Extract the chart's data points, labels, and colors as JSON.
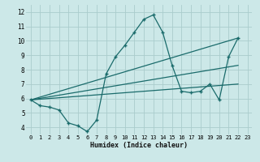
{
  "xlabel": "Humidex (Indice chaleur)",
  "ylabel": "",
  "xlim": [
    -0.5,
    23.5
  ],
  "ylim": [
    3.5,
    12.5
  ],
  "xticks": [
    0,
    1,
    2,
    3,
    4,
    5,
    6,
    7,
    8,
    9,
    10,
    11,
    12,
    13,
    14,
    15,
    16,
    17,
    18,
    19,
    20,
    21,
    22,
    23
  ],
  "yticks": [
    4,
    5,
    6,
    7,
    8,
    9,
    10,
    11,
    12
  ],
  "bg_color": "#cce8e8",
  "grid_color": "#aacccc",
  "line_color": "#1a6b6b",
  "zigzag": {
    "x": [
      0,
      1,
      2,
      3,
      4,
      5,
      6,
      7,
      8,
      9,
      10,
      11,
      12,
      13,
      14,
      15,
      16,
      17,
      18,
      19,
      20,
      21,
      22
    ],
    "y": [
      5.9,
      5.5,
      5.4,
      5.2,
      4.3,
      4.1,
      3.7,
      4.5,
      7.7,
      8.9,
      9.7,
      10.6,
      11.5,
      11.8,
      10.6,
      8.3,
      6.5,
      6.4,
      6.5,
      7.0,
      5.9,
      8.9,
      10.2
    ]
  },
  "straight_lines": [
    {
      "x": [
        0,
        22
      ],
      "y": [
        5.9,
        10.2
      ]
    },
    {
      "x": [
        0,
        22
      ],
      "y": [
        5.9,
        8.3
      ]
    },
    {
      "x": [
        0,
        22
      ],
      "y": [
        5.9,
        7.0
      ]
    }
  ]
}
